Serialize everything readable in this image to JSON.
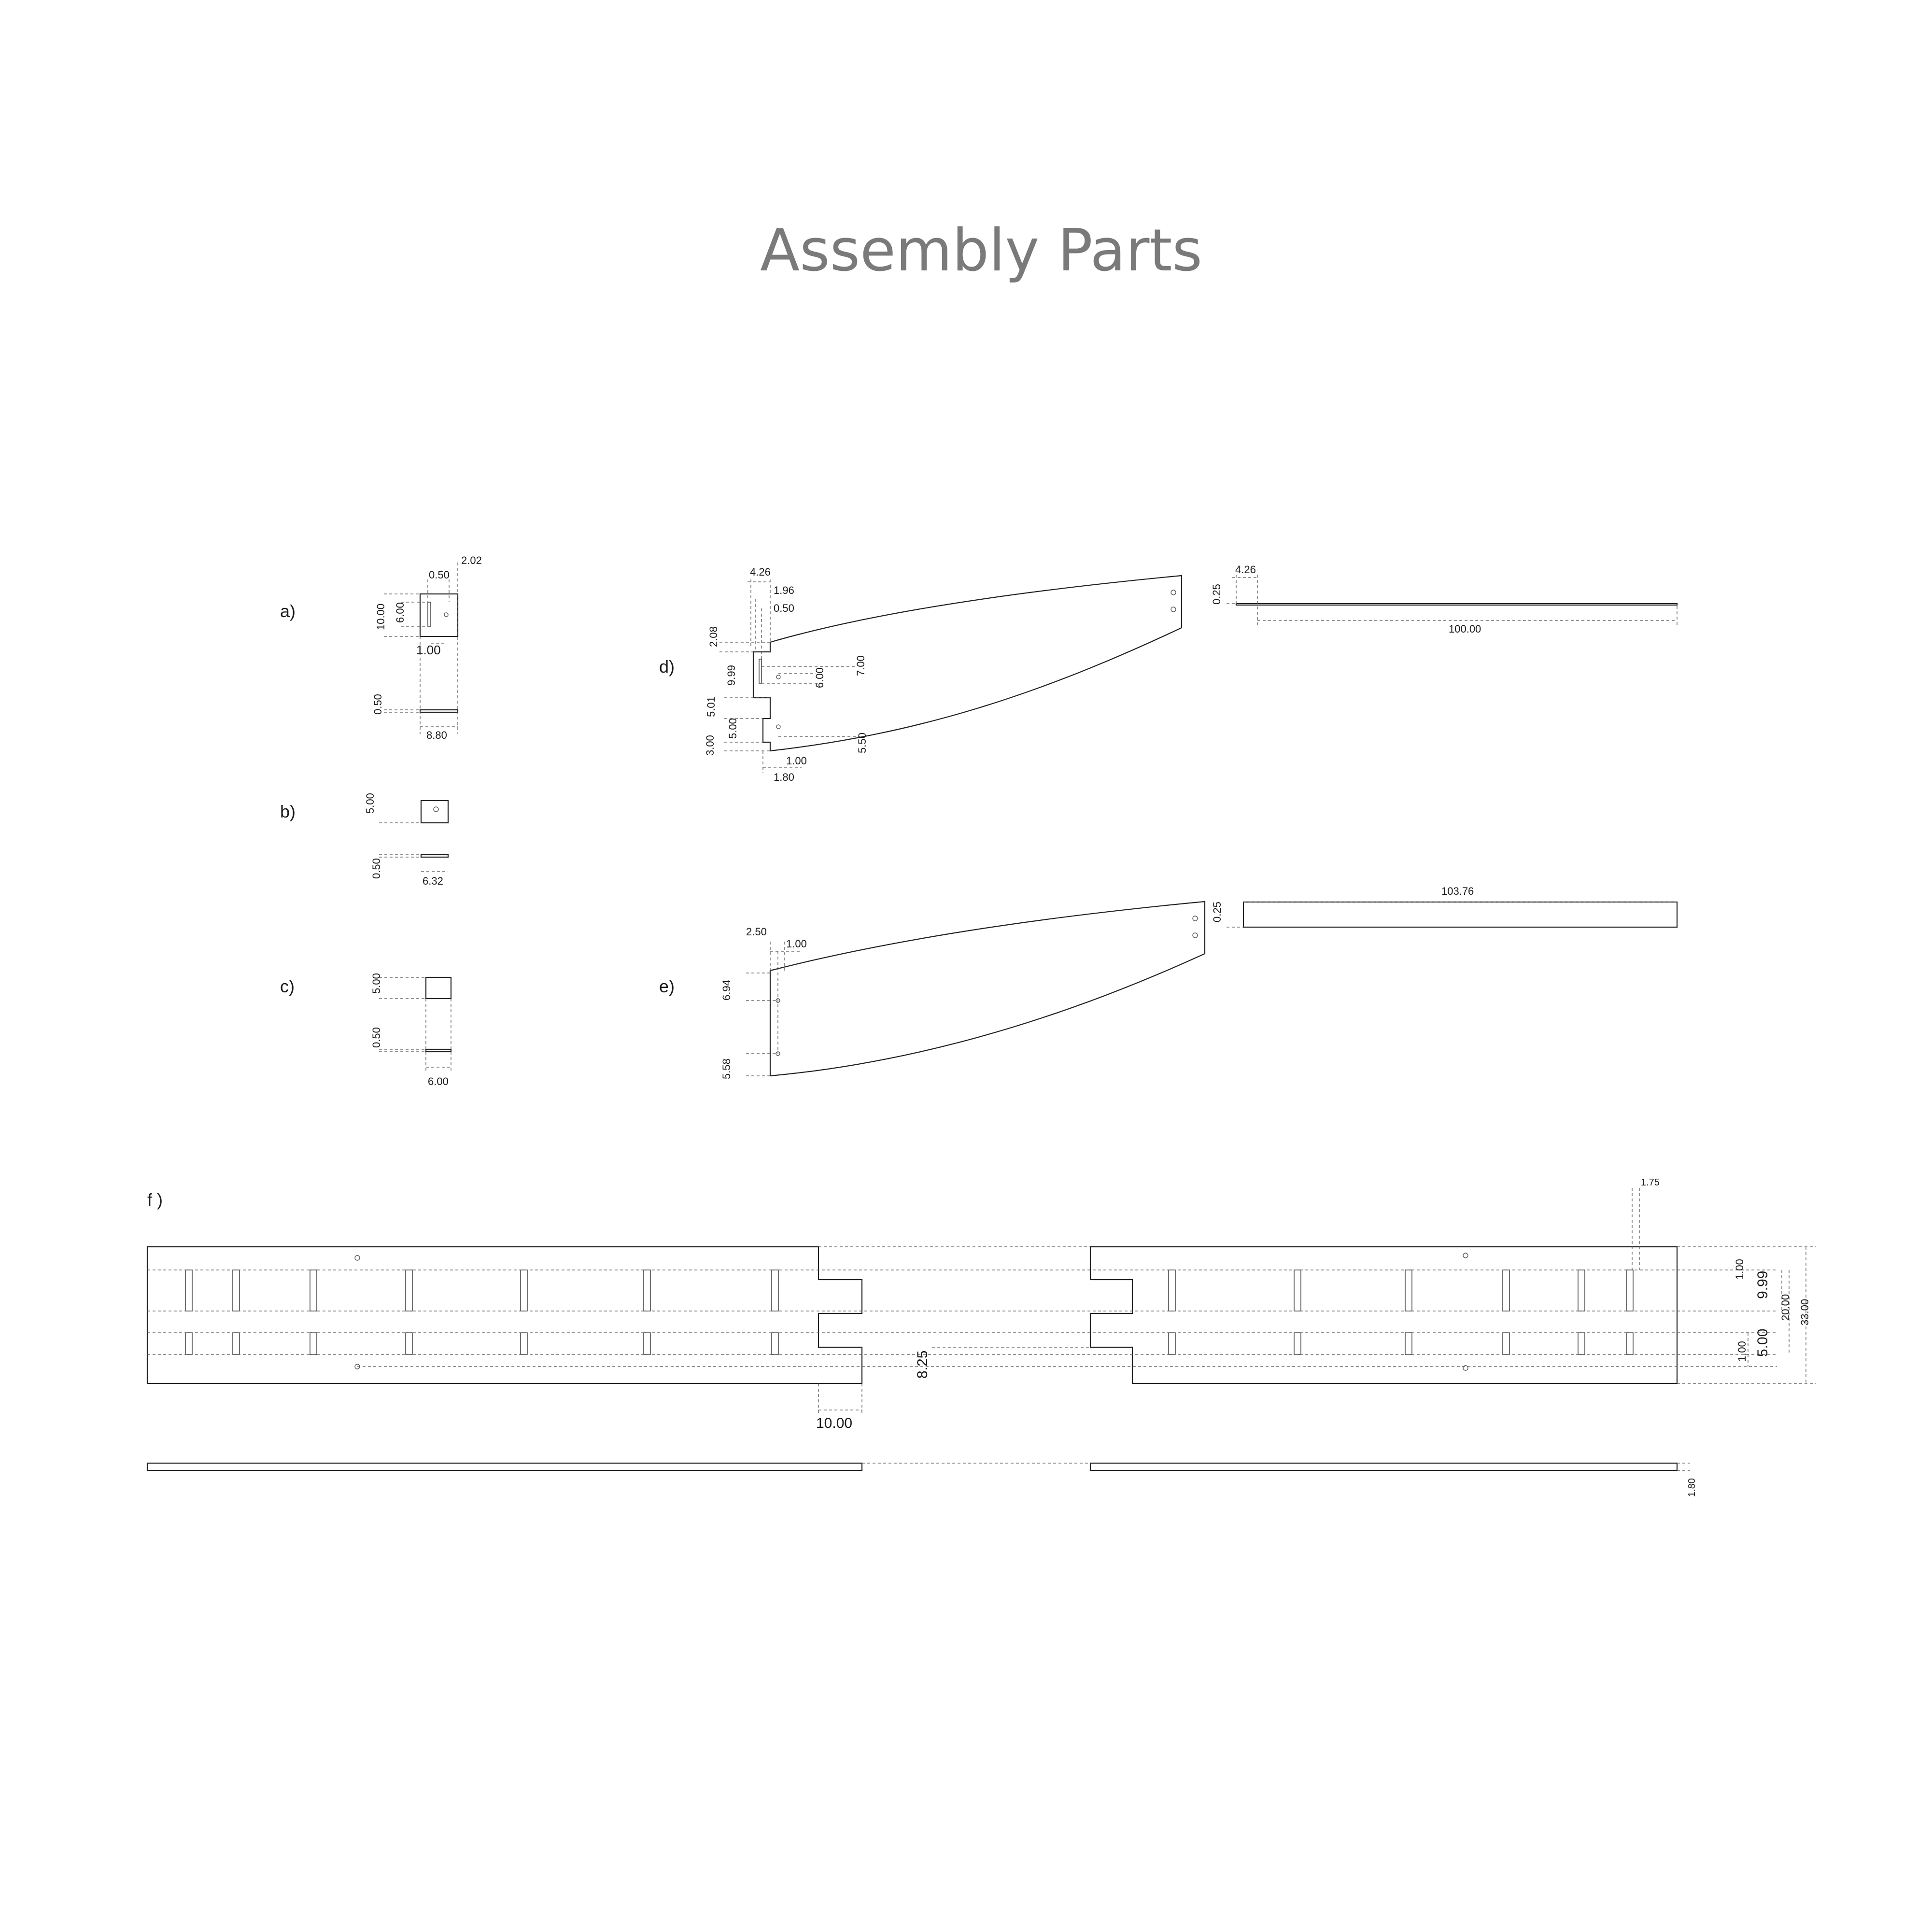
{
  "title": "Assembly Parts",
  "part_labels": {
    "a": "a)",
    "b": "b)",
    "c": "c)",
    "d": "d)",
    "e": "e)",
    "f": "f )"
  },
  "dims": {
    "a": {
      "d1": "2.02",
      "d2": "0.50",
      "d3": "10.00",
      "d4": "6.00",
      "d5": "1.00",
      "d6": "0.50",
      "d7": "8.80"
    },
    "b": {
      "d1": "5.00",
      "d2": "0.50",
      "d3": "6.32"
    },
    "c": {
      "d1": "5.00",
      "d2": "0.50",
      "d3": "6.00"
    },
    "d": {
      "d1": "4.26",
      "d2": "1.96",
      "d3": "0.50",
      "d4": "2.08",
      "d5": "7.00",
      "d6": "9.99",
      "d7": "6.00",
      "d8": "5.01",
      "d9": "5.00",
      "d10": "3.00",
      "d11": "5.50",
      "d12": "1.00",
      "d13": "1.80",
      "d14": "0.25",
      "d15": "4.26",
      "d16": "100.00"
    },
    "e": {
      "d1": "2.50",
      "d2": "1.00",
      "d3": "6.94",
      "d4": "5.58",
      "d5": "0.25",
      "d6": "103.76"
    },
    "f": {
      "d1": "1.75",
      "d2": "1.00",
      "d3": "9.99",
      "d4": "20.00",
      "d5": "33.00",
      "d6": "5.00",
      "d7": "1.00",
      "d8": "8.25",
      "d9": "10.00",
      "d10": "1.80"
    }
  }
}
